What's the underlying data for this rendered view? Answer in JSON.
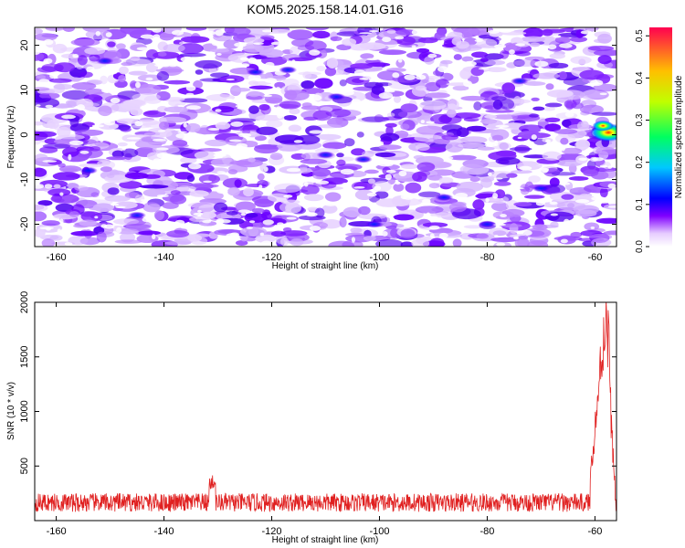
{
  "title": "KOM5.2025.158.14.01.G16",
  "colors": {
    "line": "#e02020",
    "frame": "#000000"
  },
  "chart_data": [
    {
      "type": "heatmap",
      "xlabel": "Height of straight line (km)",
      "ylabel": "Frequency (Hz)",
      "xlim": [
        -164,
        -56
      ],
      "ylim": [
        -25,
        24
      ],
      "xticks": [
        -160,
        -140,
        -120,
        -100,
        -80,
        -60
      ],
      "yticks": [
        -20,
        -10,
        0,
        10,
        20
      ],
      "colorbar": {
        "label": "Normalized spectral amplitude",
        "range": [
          0,
          0.52
        ],
        "ticks": [
          0.0,
          0.1,
          0.2,
          0.3,
          0.4,
          0.5
        ],
        "colormap": [
          "#ffffff",
          "#8000ff",
          "#0000ff",
          "#00ffff",
          "#00ff00",
          "#ffff00",
          "#ff0000"
        ]
      },
      "hotspots": [
        {
          "x": -57.5,
          "y": 0.5,
          "value": 0.42
        },
        {
          "x": -58.5,
          "y": 2.0,
          "value": 0.2
        },
        {
          "x": -145,
          "y": -18,
          "value": 0.1
        },
        {
          "x": -117,
          "y": 14.5,
          "value": 0.1
        },
        {
          "x": -110,
          "y": -4.5,
          "value": 0.1
        },
        {
          "x": -108,
          "y": 8.5,
          "value": 0.09
        },
        {
          "x": -123,
          "y": 14,
          "value": 0.09
        },
        {
          "x": -154,
          "y": -8,
          "value": 0.09
        },
        {
          "x": -151,
          "y": 16.5,
          "value": 0.09
        },
        {
          "x": -101,
          "y": -20,
          "value": 0.08
        },
        {
          "x": -80,
          "y": -20,
          "value": 0.08
        },
        {
          "x": -70,
          "y": -12,
          "value": 0.08
        },
        {
          "x": -103,
          "y": -5.5,
          "value": 0.08
        },
        {
          "x": -74,
          "y": 12,
          "value": 0.07
        },
        {
          "x": -88,
          "y": -14,
          "value": 0.07
        }
      ]
    },
    {
      "type": "line",
      "xlabel": "Height of straight line (km)",
      "ylabel": "SNR (10 * v/v)",
      "xlim": [
        -164,
        -56
      ],
      "ylim": [
        0,
        2000
      ],
      "xticks": [
        -160,
        -140,
        -120,
        -100,
        -80,
        -60
      ],
      "yticks": [
        500,
        1000,
        1500,
        2000
      ],
      "series": [
        {
          "baseline_range": [
            80,
            250
          ],
          "points": [
            [
              -162,
              180
            ],
            [
              -150,
              170
            ],
            [
              -140,
              175
            ],
            [
              -131,
              380
            ],
            [
              -120,
              180
            ],
            [
              -110,
              170
            ],
            [
              -100,
              175
            ],
            [
              -90,
              170
            ],
            [
              -80,
              175
            ],
            [
              -70,
              170
            ],
            [
              -62,
              180
            ],
            [
              -61,
              350
            ],
            [
              -60.5,
              650
            ],
            [
              -60,
              900
            ],
            [
              -59.5,
              1200
            ],
            [
              -59,
              1500
            ],
            [
              -58.6,
              1700
            ],
            [
              -58.2,
              1900
            ],
            [
              -57.8,
              2000
            ],
            [
              -57.4,
              1700
            ],
            [
              -57,
              1000
            ],
            [
              -56.5,
              500
            ],
            [
              -56,
              300
            ]
          ]
        }
      ]
    }
  ]
}
